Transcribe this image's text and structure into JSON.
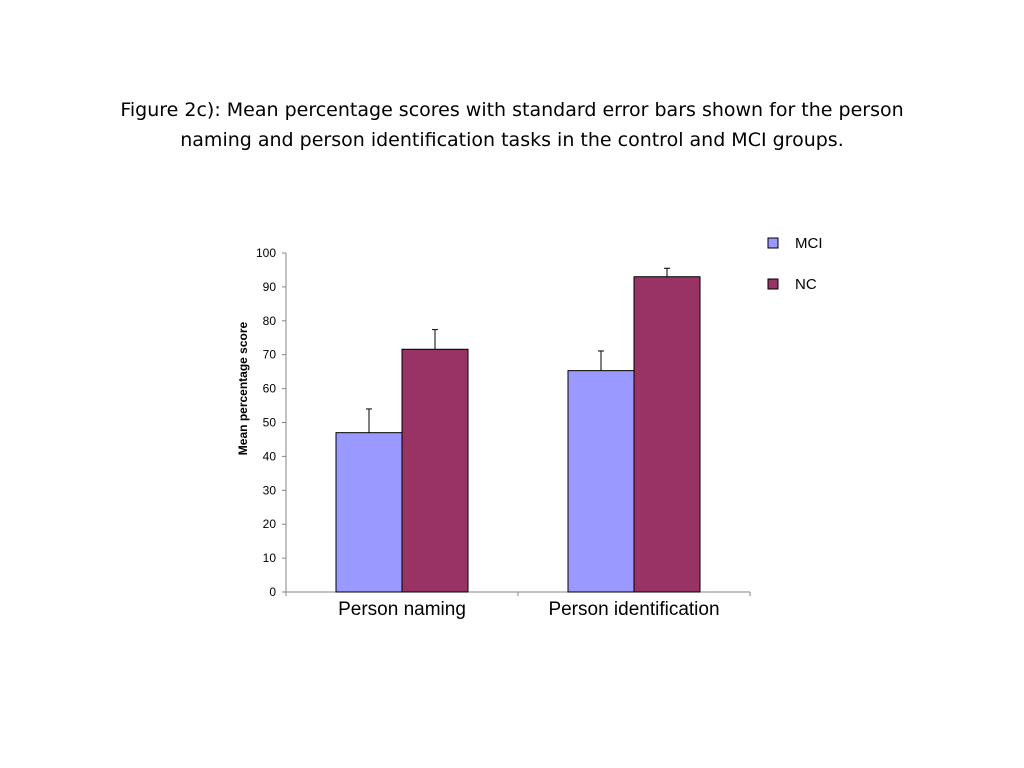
{
  "caption": {
    "line1": "Figure 2c): Mean percentage scores with standard error bars shown for the person",
    "line2": "naming and person identification tasks in the control and MCI groups."
  },
  "chart_data": {
    "type": "bar",
    "title": "Figure 2c): Mean percentage scores with standard error bars shown for the person naming and person identification tasks in the control and MCI groups.",
    "xlabel": "",
    "ylabel": "Mean percentage score",
    "ylim": [
      0,
      100
    ],
    "yticks": [
      0,
      10,
      20,
      30,
      40,
      50,
      60,
      70,
      80,
      90,
      100
    ],
    "categories": [
      "Person naming",
      "Person identification"
    ],
    "series": [
      {
        "name": "MCI",
        "color": "#9999ff",
        "values": [
          47,
          65.3
        ],
        "errors": [
          7,
          5.8
        ]
      },
      {
        "name": "NC",
        "color": "#993366",
        "values": [
          71.6,
          93
        ],
        "errors": [
          5.8,
          2.5
        ]
      }
    ],
    "grid": false,
    "legend_position": "right"
  }
}
